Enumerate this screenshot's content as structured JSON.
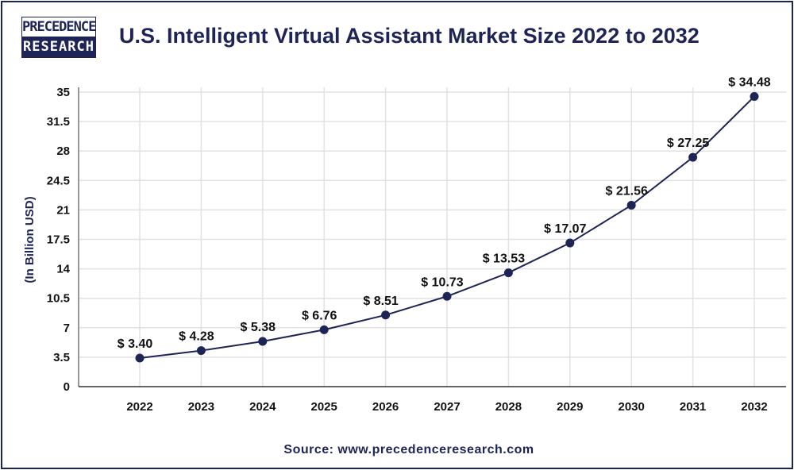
{
  "logo": {
    "line1": "PRECEDENCE",
    "line2": "RESEARCH"
  },
  "source": "Source: www.precedenceresearch.com",
  "colors": {
    "line": "#1e2456",
    "title": "#1e2456",
    "grid": "#e2e2e2"
  },
  "chart_data": {
    "type": "line",
    "title": "U.S. Intelligent Virtual Assistant Market Size 2022 to 2032",
    "xlabel": "",
    "ylabel": "(In Billion USD)",
    "categories": [
      "2022",
      "2023",
      "2024",
      "2025",
      "2026",
      "2027",
      "2028",
      "2029",
      "2030",
      "2031",
      "2032"
    ],
    "values": [
      3.4,
      4.28,
      5.38,
      6.76,
      8.51,
      10.73,
      13.53,
      17.07,
      21.56,
      27.25,
      34.48
    ],
    "data_labels": [
      "$ 3.40",
      "$ 4.28",
      "$ 5.38",
      "$ 6.76",
      "$ 8.51",
      "$ 10.73",
      "$ 13.53",
      "$ 17.07",
      "$ 21.56",
      "$ 27.25",
      "$ 34.48"
    ],
    "yticks": [
      "0",
      "3.5",
      "7",
      "10.5",
      "14",
      "17.5",
      "21",
      "24.5",
      "28",
      "31.5",
      "35"
    ],
    "ylim": [
      0,
      35
    ],
    "grid": true,
    "legend": "none"
  }
}
